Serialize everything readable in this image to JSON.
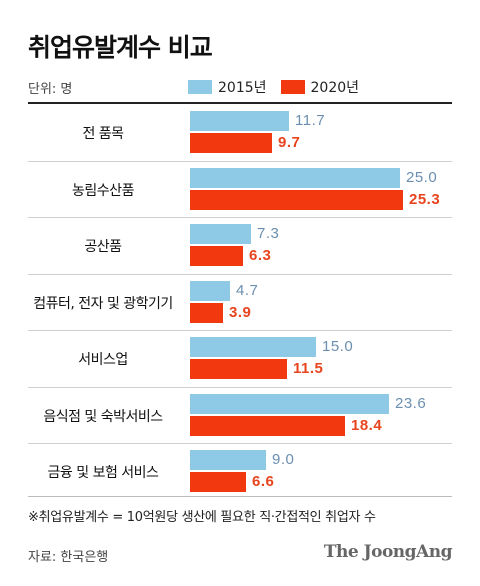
{
  "title": "취업유발계수 비교",
  "unit": "단위: 명",
  "note": "※취업유발계수 = 10억원당 생산에 필요한 직·간접적인 취업자 수",
  "source": "자료: 한국은행",
  "brand": "The JoongAng",
  "colors": {
    "s2015": "#8ecae6",
    "s2020": "#f2380f"
  },
  "chart_data": {
    "type": "bar",
    "orientation": "horizontal",
    "title": "취업유발계수 비교",
    "unit": "명",
    "legend_position": "top",
    "categories": [
      "전 품목",
      "농림수산품",
      "공산품",
      "컴퓨터, 전자 및 광학기기",
      "서비스업",
      "음식점 및 숙박서비스",
      "금융 및 보험 서비스"
    ],
    "series": [
      {
        "name": "2015년",
        "values": [
          "11.7",
          "25.0",
          "7.3",
          "4.7",
          "15.0",
          "23.6",
          "9.0"
        ]
      },
      {
        "name": "2020년",
        "values": [
          "9.7",
          "25.3",
          "6.3",
          "3.9",
          "11.5",
          "18.4",
          "6.6"
        ]
      }
    ],
    "xlim": [
      0,
      25.3
    ]
  }
}
